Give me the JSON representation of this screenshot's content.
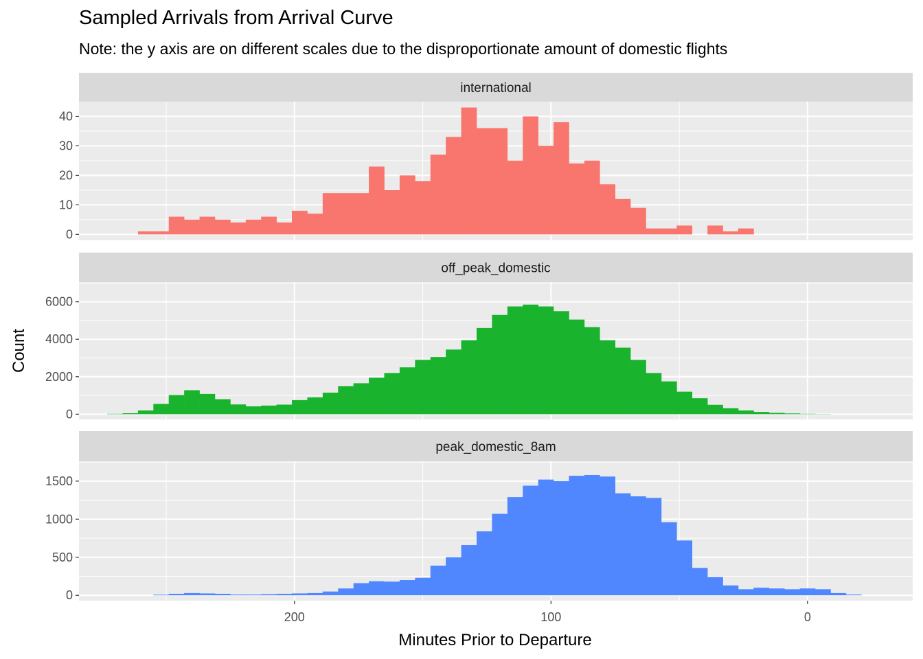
{
  "chart_data": {
    "type": "bar",
    "title": "Sampled Arrivals from Arrival Curve",
    "subtitle": "Note: the y axis are on different scales due to the disproportionate amount of domestic flights",
    "xlabel": "Minutes Prior to Departure",
    "ylabel": "Count",
    "x_reversed": true,
    "xlim": [
      284,
      -41
    ],
    "x_ticks": [
      200,
      100,
      0
    ],
    "x_tick_labels": [
      "200",
      "100",
      "0"
    ],
    "bin_width": 6,
    "legend": "none",
    "grid": true,
    "panels": [
      {
        "name": "international",
        "color": "#F8766D",
        "ylim": [
          -2,
          45
        ],
        "y_ticks": [
          0,
          10,
          20,
          30,
          40
        ],
        "y_tick_labels": [
          "0",
          "10",
          "20",
          "30",
          "40"
        ],
        "bins": [
          {
            "x": 258,
            "value": 1
          },
          {
            "x": 252,
            "value": 1
          },
          {
            "x": 246,
            "value": 6
          },
          {
            "x": 240,
            "value": 5
          },
          {
            "x": 234,
            "value": 6
          },
          {
            "x": 228,
            "value": 5
          },
          {
            "x": 222,
            "value": 4
          },
          {
            "x": 216,
            "value": 5
          },
          {
            "x": 210,
            "value": 6
          },
          {
            "x": 204,
            "value": 4
          },
          {
            "x": 198,
            "value": 8
          },
          {
            "x": 192,
            "value": 7
          },
          {
            "x": 186,
            "value": 14
          },
          {
            "x": 180,
            "value": 14
          },
          {
            "x": 174,
            "value": 14
          },
          {
            "x": 168,
            "value": 23
          },
          {
            "x": 162,
            "value": 15
          },
          {
            "x": 156,
            "value": 20
          },
          {
            "x": 150,
            "value": 18
          },
          {
            "x": 144,
            "value": 27
          },
          {
            "x": 138,
            "value": 33
          },
          {
            "x": 132,
            "value": 43
          },
          {
            "x": 126,
            "value": 36
          },
          {
            "x": 120,
            "value": 36
          },
          {
            "x": 114,
            "value": 25
          },
          {
            "x": 108,
            "value": 40
          },
          {
            "x": 102,
            "value": 30
          },
          {
            "x": 96,
            "value": 38
          },
          {
            "x": 90,
            "value": 24
          },
          {
            "x": 84,
            "value": 25
          },
          {
            "x": 78,
            "value": 17
          },
          {
            "x": 72,
            "value": 12
          },
          {
            "x": 66,
            "value": 9
          },
          {
            "x": 60,
            "value": 2
          },
          {
            "x": 54,
            "value": 2
          },
          {
            "x": 48,
            "value": 3
          },
          {
            "x": 42,
            "value": 0
          },
          {
            "x": 36,
            "value": 3
          },
          {
            "x": 30,
            "value": 1
          },
          {
            "x": 24,
            "value": 2
          }
        ]
      },
      {
        "name": "off_peak_domestic",
        "color": "#19B32E",
        "ylim": [
          -280,
          7050
        ],
        "y_ticks": [
          0,
          2000,
          4000,
          6000
        ],
        "y_tick_labels": [
          "0",
          "2000",
          "4000",
          "6000"
        ],
        "bins": [
          {
            "x": 270,
            "value": 20
          },
          {
            "x": 264,
            "value": 50
          },
          {
            "x": 258,
            "value": 200
          },
          {
            "x": 252,
            "value": 550
          },
          {
            "x": 246,
            "value": 1020
          },
          {
            "x": 240,
            "value": 1280
          },
          {
            "x": 234,
            "value": 1080
          },
          {
            "x": 228,
            "value": 800
          },
          {
            "x": 222,
            "value": 520
          },
          {
            "x": 216,
            "value": 420
          },
          {
            "x": 210,
            "value": 460
          },
          {
            "x": 204,
            "value": 510
          },
          {
            "x": 198,
            "value": 750
          },
          {
            "x": 192,
            "value": 900
          },
          {
            "x": 186,
            "value": 1150
          },
          {
            "x": 180,
            "value": 1500
          },
          {
            "x": 174,
            "value": 1650
          },
          {
            "x": 168,
            "value": 1950
          },
          {
            "x": 162,
            "value": 2200
          },
          {
            "x": 156,
            "value": 2500
          },
          {
            "x": 150,
            "value": 2900
          },
          {
            "x": 144,
            "value": 3050
          },
          {
            "x": 138,
            "value": 3450
          },
          {
            "x": 132,
            "value": 3950
          },
          {
            "x": 126,
            "value": 4600
          },
          {
            "x": 120,
            "value": 5300
          },
          {
            "x": 114,
            "value": 5750
          },
          {
            "x": 108,
            "value": 5850
          },
          {
            "x": 102,
            "value": 5750
          },
          {
            "x": 96,
            "value": 5500
          },
          {
            "x": 90,
            "value": 5050
          },
          {
            "x": 84,
            "value": 4650
          },
          {
            "x": 78,
            "value": 3950
          },
          {
            "x": 72,
            "value": 3550
          },
          {
            "x": 66,
            "value": 2900
          },
          {
            "x": 60,
            "value": 2200
          },
          {
            "x": 54,
            "value": 1750
          },
          {
            "x": 48,
            "value": 1200
          },
          {
            "x": 42,
            "value": 850
          },
          {
            "x": 36,
            "value": 500
          },
          {
            "x": 30,
            "value": 320
          },
          {
            "x": 24,
            "value": 200
          },
          {
            "x": 18,
            "value": 120
          },
          {
            "x": 12,
            "value": 70
          },
          {
            "x": 6,
            "value": 40
          },
          {
            "x": 0,
            "value": 20
          },
          {
            "x": -6,
            "value": 10
          }
        ]
      },
      {
        "name": "peak_domestic_8am",
        "color": "#5087FE",
        "ylim": [
          -70,
          1760
        ],
        "y_ticks": [
          0,
          500,
          1000,
          1500
        ],
        "y_tick_labels": [
          "0",
          "500",
          "1000",
          "1500"
        ],
        "bins": [
          {
            "x": 252,
            "value": 8
          },
          {
            "x": 246,
            "value": 20
          },
          {
            "x": 240,
            "value": 30
          },
          {
            "x": 234,
            "value": 25
          },
          {
            "x": 228,
            "value": 20
          },
          {
            "x": 222,
            "value": 10
          },
          {
            "x": 216,
            "value": 10
          },
          {
            "x": 210,
            "value": 15
          },
          {
            "x": 204,
            "value": 20
          },
          {
            "x": 198,
            "value": 25
          },
          {
            "x": 192,
            "value": 30
          },
          {
            "x": 186,
            "value": 50
          },
          {
            "x": 180,
            "value": 90
          },
          {
            "x": 174,
            "value": 160
          },
          {
            "x": 168,
            "value": 185
          },
          {
            "x": 162,
            "value": 180
          },
          {
            "x": 156,
            "value": 200
          },
          {
            "x": 150,
            "value": 230
          },
          {
            "x": 144,
            "value": 390
          },
          {
            "x": 138,
            "value": 500
          },
          {
            "x": 132,
            "value": 660
          },
          {
            "x": 126,
            "value": 840
          },
          {
            "x": 120,
            "value": 1070
          },
          {
            "x": 114,
            "value": 1290
          },
          {
            "x": 108,
            "value": 1440
          },
          {
            "x": 102,
            "value": 1520
          },
          {
            "x": 96,
            "value": 1500
          },
          {
            "x": 90,
            "value": 1570
          },
          {
            "x": 84,
            "value": 1580
          },
          {
            "x": 78,
            "value": 1560
          },
          {
            "x": 72,
            "value": 1340
          },
          {
            "x": 66,
            "value": 1300
          },
          {
            "x": 60,
            "value": 1280
          },
          {
            "x": 54,
            "value": 960
          },
          {
            "x": 48,
            "value": 720
          },
          {
            "x": 42,
            "value": 360
          },
          {
            "x": 36,
            "value": 240
          },
          {
            "x": 30,
            "value": 130
          },
          {
            "x": 24,
            "value": 80
          },
          {
            "x": 18,
            "value": 100
          },
          {
            "x": 12,
            "value": 90
          },
          {
            "x": 6,
            "value": 80
          },
          {
            "x": 0,
            "value": 90
          },
          {
            "x": -6,
            "value": 80
          },
          {
            "x": -12,
            "value": 30
          },
          {
            "x": -18,
            "value": 10
          }
        ]
      }
    ]
  }
}
